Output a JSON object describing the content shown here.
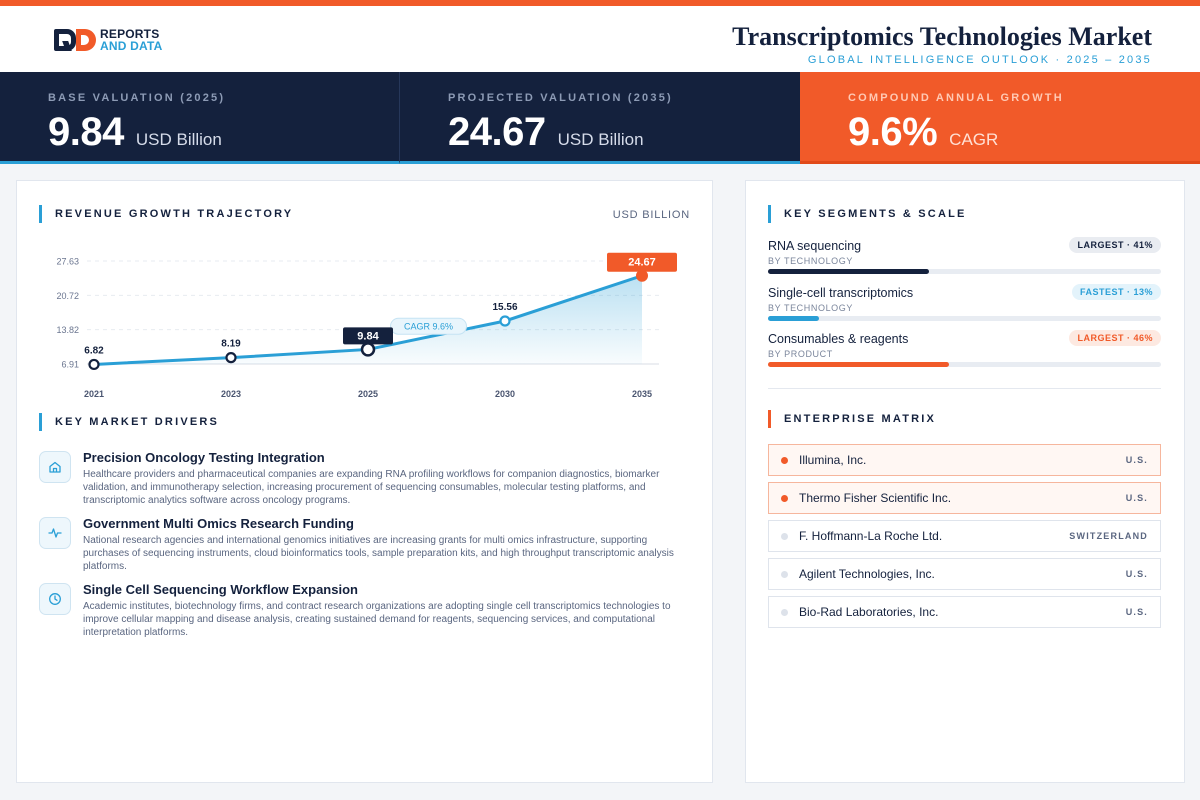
{
  "header": {
    "title": "Transcriptomics Technologies Market",
    "subtitle": "GLOBAL INTELLIGENCE OUTLOOK  ·  2025 – 2035",
    "logo_line1": "REPORTS",
    "logo_line2": "AND DATA"
  },
  "kpis": [
    {
      "label": "BASE VALUATION (2025)",
      "value": "9.84",
      "unit": "USD Billion"
    },
    {
      "label": "PROJECTED VALUATION (2035)",
      "value": "24.67",
      "unit": "USD Billion"
    },
    {
      "label": "COMPOUND ANNUAL GROWTH",
      "value": "9.6%",
      "unit": "CAGR"
    }
  ],
  "chart_section": {
    "title": "REVENUE GROWTH TRAJECTORY",
    "unit": "USD BILLION"
  },
  "chart_data": {
    "type": "area",
    "title": "REVENUE GROWTH TRAJECTORY",
    "ylabel": "USD BILLION",
    "x": [
      "2021",
      "2023",
      "2025",
      "2030",
      "2035"
    ],
    "values": [
      6.82,
      8.19,
      9.84,
      15.56,
      24.67
    ],
    "value_labels": [
      "6.82",
      "8.19",
      "9.84",
      "15.56",
      "24.67"
    ],
    "y_ticks": [
      6.91,
      13.82,
      20.72,
      27.63
    ],
    "y_tick_labels": [
      "6.91",
      "13.82",
      "20.72",
      "27.63"
    ],
    "ylim": [
      6.91,
      27.63
    ],
    "grid": true,
    "annotation": "CAGR 9.6%",
    "colors": {
      "line": "#2a9fd6",
      "highlight": "#14213d",
      "end": "#f15a29"
    }
  },
  "drivers_section": {
    "title": "KEY MARKET DRIVERS"
  },
  "drivers": [
    {
      "icon": "building-icon",
      "title": "Precision Oncology Testing Integration",
      "desc": "Healthcare providers and pharmaceutical companies are expanding RNA profiling workflows for companion diagnostics, biomarker validation, and immunotherapy selection, increasing procurement of sequencing consumables, molecular testing platforms, and transcriptomic analytics software across oncology programs."
    },
    {
      "icon": "activity-icon",
      "title": "Government Multi Omics Research Funding",
      "desc": "National research agencies and international genomics initiatives are increasing grants for multi omics infrastructure, supporting purchases of sequencing instruments, cloud bioinformatics tools, sample preparation kits, and high throughput transcriptomic analysis platforms."
    },
    {
      "icon": "clock-icon",
      "title": "Single Cell Sequencing Workflow Expansion",
      "desc": "Academic institutes, biotechnology firms, and contract research organizations are adopting single cell transcriptomics technologies to improve cellular mapping and disease analysis, creating sustained demand for reagents, sequencing services, and computational interpretation platforms."
    }
  ],
  "segments_section": {
    "title": "KEY SEGMENTS & SCALE"
  },
  "segments": [
    {
      "name": "RNA sequencing",
      "sub": "BY TECHNOLOGY",
      "badge": "LARGEST · 41%",
      "share": 0.41,
      "bar_color": "#14213d",
      "badge_bg": "#e9ecf1",
      "badge_color": "#14213d"
    },
    {
      "name": "Single-cell transcriptomics",
      "sub": "BY TECHNOLOGY",
      "badge": "FASTEST · 13%",
      "share": 0.13,
      "bar_color": "#2a9fd6",
      "badge_bg": "#e3f3fb",
      "badge_color": "#2a9fd6"
    },
    {
      "name": "Consumables & reagents",
      "sub": "BY PRODUCT",
      "badge": "LARGEST · 46%",
      "share": 0.46,
      "bar_color": "#f15a29",
      "badge_bg": "#fde9e1",
      "badge_color": "#f15a29"
    }
  ],
  "enterprise_section": {
    "title": "ENTERPRISE MATRIX"
  },
  "enterprises": [
    {
      "name": "Illumina, Inc.",
      "country": "U.S.",
      "highlight": true
    },
    {
      "name": "Thermo Fisher Scientific Inc.",
      "country": "U.S.",
      "highlight": true
    },
    {
      "name": "F. Hoffmann-La Roche Ltd.",
      "country": "SWITZERLAND",
      "highlight": false
    },
    {
      "name": "Agilent Technologies, Inc.",
      "country": "U.S.",
      "highlight": false
    },
    {
      "name": "Bio-Rad Laboratories, Inc.",
      "country": "U.S.",
      "highlight": false
    }
  ]
}
